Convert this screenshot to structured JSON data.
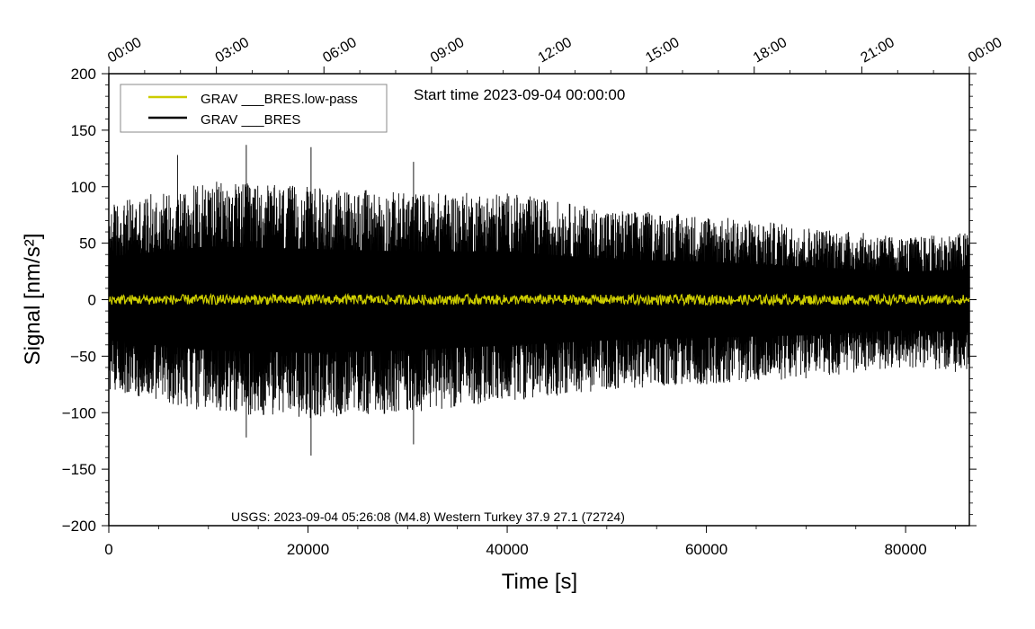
{
  "chart_data": {
    "type": "line",
    "ylabel": "Signal [nm/s²]",
    "xlabel": "Time [s]",
    "xlim": [
      0,
      86400
    ],
    "ylim": [
      -200,
      200
    ],
    "x_ticks": [
      0,
      20000,
      40000,
      60000,
      80000
    ],
    "x_tick_labels": [
      "0",
      "20000",
      "40000",
      "60000",
      "80000"
    ],
    "y_ticks": [
      -200,
      -150,
      -100,
      -50,
      0,
      50,
      100,
      150,
      200
    ],
    "y_tick_labels": [
      "−200",
      "−150",
      "−100",
      "−50",
      "0",
      "50",
      "100",
      "150",
      "200"
    ],
    "top_axis_ticks_s": [
      0,
      10800,
      21600,
      32400,
      43200,
      54000,
      64800,
      75600,
      86400
    ],
    "top_axis_labels": [
      "00:00",
      "03:00",
      "06:00",
      "09:00",
      "12:00",
      "15:00",
      "18:00",
      "21:00",
      "00:00"
    ],
    "start_time_label": "Start time 2023-09-04 00:00:00",
    "event_annotation": "USGS: 2023-09-04 05:26:08 (M4.8) Western Turkey 37.9 27.1 (72724)",
    "legend_position": "top-left",
    "series": [
      {
        "name": "GRAV ___BRES.low-pass",
        "color": "#cccc00",
        "description": "Low-pass filtered gravity residual, small amplitude around zero",
        "typical_range": [
          -5,
          5
        ]
      },
      {
        "name": "GRAV ___BRES",
        "color": "#000000",
        "description": "Raw gravity residual, dense noise",
        "envelope_x": [
          0,
          10000,
          20000,
          30000,
          40000,
          50000,
          60000,
          70000,
          80000,
          86400
        ],
        "envelope_upper": [
          85,
          105,
          100,
          95,
          95,
          80,
          75,
          65,
          55,
          60
        ],
        "envelope_lower": [
          -80,
          -100,
          -105,
          -100,
          -90,
          -80,
          -75,
          -70,
          -60,
          -65
        ],
        "notable_peaks": [
          {
            "x": 6900,
            "y": 128
          },
          {
            "x": 13800,
            "y": 137
          },
          {
            "x": 20300,
            "y": 135
          },
          {
            "x": 30600,
            "y": 122
          },
          {
            "x": 20300,
            "y": -138
          },
          {
            "x": 30600,
            "y": -128
          },
          {
            "x": 13800,
            "y": -122
          }
        ]
      }
    ]
  }
}
